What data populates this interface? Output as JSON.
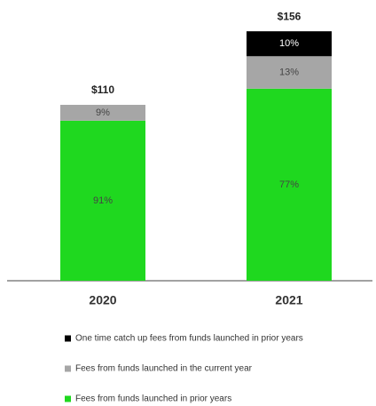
{
  "chart_data": {
    "type": "bar",
    "stacked": true,
    "categories": [
      "2020",
      "2021"
    ],
    "series": [
      {
        "name": "Fees from funds launched in prior years",
        "color": "#1fd81f",
        "values": [
          91,
          77
        ],
        "value_labels": [
          "91%",
          "77%"
        ]
      },
      {
        "name": "Fees from funds launched in the current year",
        "color": "#a6a6a6",
        "values": [
          9,
          13
        ],
        "value_labels": [
          "9%",
          "13%"
        ]
      },
      {
        "name": "One time catch up fees from funds launched in prior years",
        "color": "#000000",
        "values": [
          null,
          10
        ],
        "value_labels": [
          null,
          "10%"
        ]
      }
    ],
    "totals": {
      "values": [
        110,
        156
      ],
      "value_labels": [
        "$110",
        "$156"
      ]
    }
  }
}
